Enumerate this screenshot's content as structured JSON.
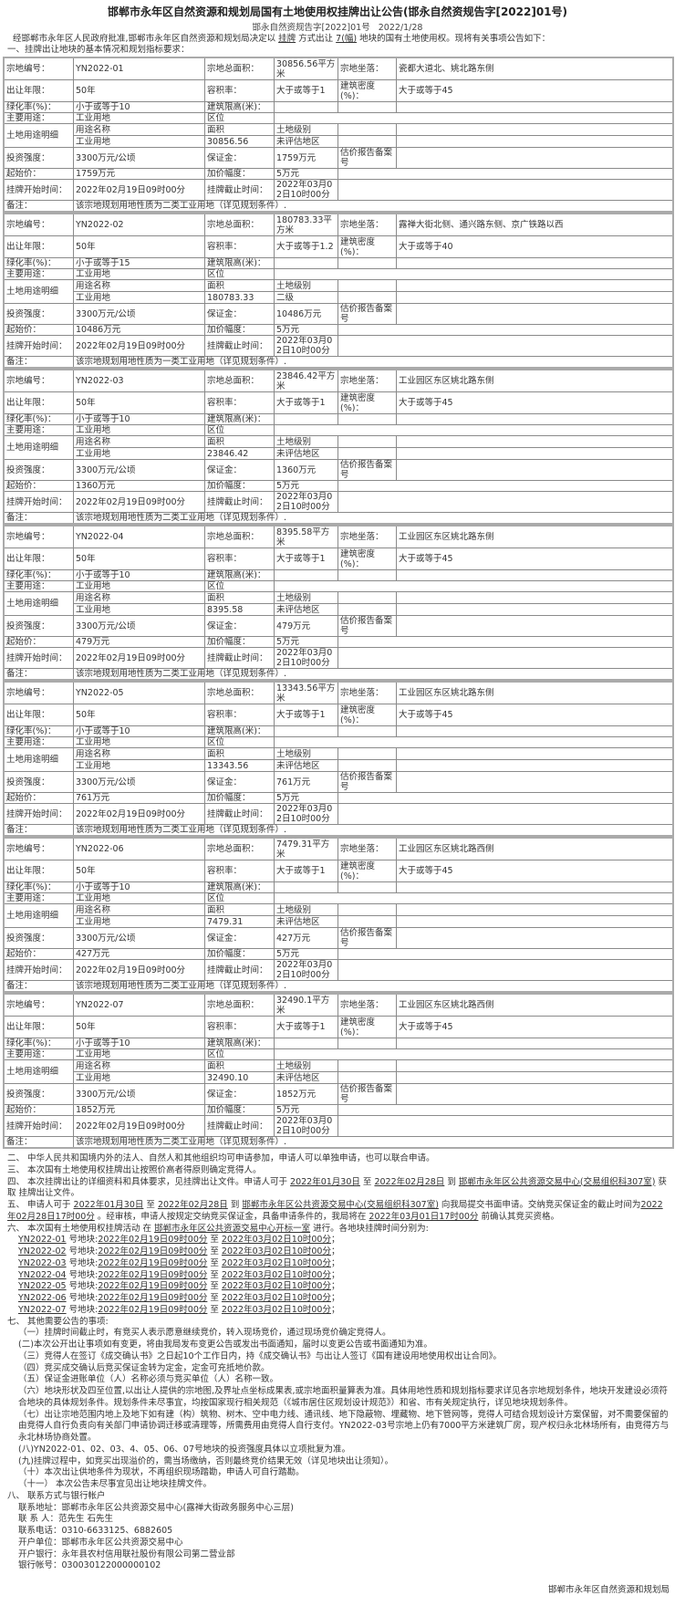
{
  "title": "邯郸市永年区自然资源和规划局国有土地使用权挂牌出让公告(邯永自然资规告字[2022]01号)",
  "doc_no": "邯永自然资规告字[2022]01号",
  "doc_date": "2022/1/28",
  "intro": {
    "a": "经邯郸市永年区人民政府批准,邯郸市永年区自然资源和规划局决定以 ",
    "method": "挂牌",
    "b": " 方式出让 ",
    "count": "7(幅)",
    "c": " 地块的国有土地使用权。现将有关事项公告如下："
  },
  "section1": "一、挂牌出让地块的基本情况和规划指标要求：",
  "labels": {
    "id": "宗地编号：",
    "area": "宗地总面积：",
    "loc": "宗地坐落：",
    "term": "出让年限：",
    "far": "容积率：",
    "density": "建筑密度(%)：",
    "green": "绿化率(%)：",
    "height": "建筑限高(米)：",
    "use": "主要用途：",
    "zone": "区位",
    "detail": "土地用途明细",
    "use_name": "用途名称",
    "area_col": "面积",
    "level": "土地级别",
    "invest": "投资强度：",
    "deposit": "保证金：",
    "appraisal": "估价报告备案号",
    "start_price": "起始价：",
    "increment": "加价幅度：",
    "start_time": "挂牌开始时间：",
    "end_time": "挂牌截止时间：",
    "note": "备注："
  },
  "parcels": [
    {
      "id": "YN2022-01",
      "area": "30856.56平方米",
      "loc": "瓷都大道北、姚北路东侧",
      "term": "50年",
      "far": "大于或等于1",
      "density": "大于或等于45",
      "green": "小于或等于10",
      "use": "工业用地",
      "use_name": "工业用地",
      "area_num": "30856.56",
      "level": "未评估地区",
      "invest": "3300万元/公顷",
      "deposit": "1759万元",
      "start_price": "1759万元",
      "increment": "5万元",
      "start_time": "2022年02月19日09时00分",
      "end_time": "2022年03月02日10时00分",
      "note": "该宗地规划用地性质为二类工业用地（详见规划条件）."
    },
    {
      "id": "YN2022-02",
      "area": "180783.33平方米",
      "loc": "露禅大街北侧、通兴路东侧、京广铁路以西",
      "term": "50年",
      "far": "大于或等于1.2",
      "density": "大于或等于40",
      "green": "小于或等于15",
      "use": "工业用地",
      "use_name": "工业用地",
      "area_num": "180783.33",
      "level": "二级",
      "invest": "3300万元/公顷",
      "deposit": "10486万元",
      "start_price": "10486万元",
      "increment": "5万元",
      "start_time": "2022年02月19日09时00分",
      "end_time": "2022年03月02日10时00分",
      "note": "该宗地规划用地性质为一类工业用地（详见规划条件）."
    },
    {
      "id": "YN2022-03",
      "area": "23846.42平方米",
      "loc": "工业园区东区姚北路东侧",
      "term": "50年",
      "far": "大于或等于1",
      "density": "大于或等于45",
      "green": "小于或等于10",
      "use": "工业用地",
      "use_name": "工业用地",
      "area_num": "23846.42",
      "level": "未评估地区",
      "invest": "3300万元/公顷",
      "deposit": "1360万元",
      "start_price": "1360万元",
      "increment": "5万元",
      "start_time": "2022年02月19日09时00分",
      "end_time": "2022年03月02日10时00分",
      "note": "该宗地规划用地性质为二类工业用地（详见规划条件）."
    },
    {
      "id": "YN2022-04",
      "area": "8395.58平方米",
      "loc": "工业园区东区姚北路东侧",
      "term": "50年",
      "far": "大于或等于1",
      "density": "大于或等于45",
      "green": "小于或等于10",
      "use": "工业用地",
      "use_name": "工业用地",
      "area_num": "8395.58",
      "level": "未评估地区",
      "invest": "3300万元/公顷",
      "deposit": "479万元",
      "start_price": "479万元",
      "increment": "5万元",
      "start_time": "2022年02月19日09时00分",
      "end_time": "2022年03月02日10时00分",
      "note": "该宗地规划用地性质为二类工业用地（详见规划条件）."
    },
    {
      "id": "YN2022-05",
      "area": "13343.56平方米",
      "loc": "工业园区东区姚北路东侧",
      "term": "50年",
      "far": "大于或等于1",
      "density": "大于或等于45",
      "green": "小于或等于10",
      "use": "工业用地",
      "use_name": "工业用地",
      "area_num": "13343.56",
      "level": "未评估地区",
      "invest": "3300万元/公顷",
      "deposit": "761万元",
      "start_price": "761万元",
      "increment": "5万元",
      "start_time": "2022年02月19日09时00分",
      "end_time": "2022年03月02日10时00分",
      "note": "该宗地规划用地性质为二类工业用地（详见规划条件）."
    },
    {
      "id": "YN2022-06",
      "area": "7479.31平方米",
      "loc": "工业园区东区姚北路西侧",
      "term": "50年",
      "far": "大于或等于1",
      "density": "大于或等于45",
      "green": "小于或等于10",
      "use": "工业用地",
      "use_name": "工业用地",
      "area_num": "7479.31",
      "level": "未评估地区",
      "invest": "3300万元/公顷",
      "deposit": "427万元",
      "start_price": "427万元",
      "increment": "5万元",
      "start_time": "2022年02月19日09时00分",
      "end_time": "2022年03月02日10时00分",
      "note": "该宗地规划用地性质为二类工业用地（详见规划条件）."
    },
    {
      "id": "YN2022-07",
      "area": "32490.1平方米",
      "loc": "工业园区东区姚北路西侧",
      "term": "50年",
      "far": "大于或等于1",
      "density": "大于或等于45",
      "green": "小于或等于10",
      "use": "工业用地",
      "use_name": "工业用地",
      "area_num": "32490.10",
      "level": "未评估地区",
      "invest": "3300万元/公顷",
      "deposit": "1852万元",
      "start_price": "1852万元",
      "increment": "5万元",
      "start_time": "2022年02月19日09时00分",
      "end_time": "2022年03月02日10时00分",
      "note": "该宗地规划用地性质为二类工业用地（详见规划条件）."
    }
  ],
  "notes": [
    {
      "indent": 0,
      "segs": [
        {
          "t": "二、 中华人民共和国境内外的法人、自然人和其他组织均可申请参加，申请人可以单独申请，也可以联合申请。"
        }
      ]
    },
    {
      "indent": 0,
      "segs": [
        {
          "t": "三、 本次国有土地使用权挂牌出让按照价高者得原则确定竞得人。"
        }
      ]
    },
    {
      "indent": 0,
      "segs": [
        {
          "t": "四、 本次挂牌出让的详细资料和具体要求，见挂牌出让文件。申请人可于 "
        },
        {
          "t": "2022年01月30日",
          "u": true
        },
        {
          "t": " 至 "
        },
        {
          "t": "2022年02月28日",
          "u": true
        },
        {
          "t": " 到 "
        },
        {
          "t": "邯郸市永年区公共资源交易中心(交易组织科307室)",
          "u": true
        },
        {
          "t": " 获取 挂牌出让文件。"
        }
      ]
    },
    {
      "indent": 0,
      "segs": [
        {
          "t": "五、 申请人可于 "
        },
        {
          "t": "2022年01月30日",
          "u": true
        },
        {
          "t": " 至 "
        },
        {
          "t": "2022年02月28日",
          "u": true
        },
        {
          "t": " 到 "
        },
        {
          "t": "邯郸市永年区公共资源交易中心(交易组织科307室)",
          "u": true
        },
        {
          "t": " 向我局提交书面申请。交纳竞买保证金的截止时间为"
        },
        {
          "t": "2022年02月28日17时00分",
          "u": true
        },
        {
          "t": " 。经审核，申请人按规定交纳竞买保证金，具备申请条件的，我局将在 "
        },
        {
          "t": "2022年03月01日17时00分",
          "u": true
        },
        {
          "t": " 前确认其竞买资格。"
        }
      ]
    },
    {
      "indent": 0,
      "segs": [
        {
          "t": "六、 本次国有土地使用权挂牌活动 在 "
        },
        {
          "t": "邯郸市永年区公共资源交易中心开标一室",
          "u": true
        },
        {
          "t": " 进行。各地块挂牌时间分别为:"
        }
      ]
    },
    {
      "indent": 1,
      "segs": [
        {
          "t": "YN2022-01",
          "u": true
        },
        {
          "t": " 号地块:"
        },
        {
          "t": "2022年02月19日09时00分",
          "u": true
        },
        {
          "t": " 至 "
        },
        {
          "t": "2022年03月02日10时00分",
          "u": true
        },
        {
          "t": "；"
        }
      ]
    },
    {
      "indent": 1,
      "segs": [
        {
          "t": "YN2022-02",
          "u": true
        },
        {
          "t": " 号地块:"
        },
        {
          "t": "2022年02月19日09时00分",
          "u": true
        },
        {
          "t": " 至 "
        },
        {
          "t": "2022年03月02日10时00分",
          "u": true
        },
        {
          "t": "；"
        }
      ]
    },
    {
      "indent": 1,
      "segs": [
        {
          "t": "YN2022-03",
          "u": true
        },
        {
          "t": " 号地块:"
        },
        {
          "t": "2022年02月19日09时00分",
          "u": true
        },
        {
          "t": " 至 "
        },
        {
          "t": "2022年03月02日10时00分",
          "u": true
        },
        {
          "t": "；"
        }
      ]
    },
    {
      "indent": 1,
      "segs": [
        {
          "t": "YN2022-04",
          "u": true
        },
        {
          "t": " 号地块:"
        },
        {
          "t": "2022年02月19日09时00分",
          "u": true
        },
        {
          "t": " 至 "
        },
        {
          "t": "2022年03月02日10时00分",
          "u": true
        },
        {
          "t": "；"
        }
      ]
    },
    {
      "indent": 1,
      "segs": [
        {
          "t": "YN2022-05",
          "u": true
        },
        {
          "t": " 号地块:"
        },
        {
          "t": "2022年02月19日09时00分",
          "u": true
        },
        {
          "t": " 至 "
        },
        {
          "t": "2022年03月02日10时00分",
          "u": true
        },
        {
          "t": "；"
        }
      ]
    },
    {
      "indent": 1,
      "segs": [
        {
          "t": "YN2022-06",
          "u": true
        },
        {
          "t": " 号地块:"
        },
        {
          "t": "2022年02月19日09时00分",
          "u": true
        },
        {
          "t": " 至 "
        },
        {
          "t": "2022年03月02日10时00分",
          "u": true
        },
        {
          "t": "；"
        }
      ]
    },
    {
      "indent": 1,
      "segs": [
        {
          "t": "YN2022-07",
          "u": true
        },
        {
          "t": " 号地块:"
        },
        {
          "t": "2022年02月19日09时00分",
          "u": true
        },
        {
          "t": " 至 "
        },
        {
          "t": "2022年03月02日10时00分",
          "u": true
        },
        {
          "t": "；"
        }
      ]
    },
    {
      "indent": 0,
      "segs": [
        {
          "t": "七、 其他需要公告的事项:"
        }
      ]
    },
    {
      "indent": 1,
      "segs": [
        {
          "t": "（一）挂牌时间截止时，有竞买人表示愿意继续竞价，转入现场竞价，通过现场竞价确定竞得人。"
        }
      ]
    },
    {
      "indent": 1,
      "segs": [
        {
          "t": "(二)本次公开出让事项如有变更，将由我局发布变更公告或发出书面通知，届时以变更公告或书面通知为准。"
        }
      ]
    },
    {
      "indent": 1,
      "segs": [
        {
          "t": "（三）竞得人在签订《成交确认书》之日起10个工作日内，持《成交确认书》与出让人签订《国有建设用地使用权出让合同》。"
        }
      ]
    },
    {
      "indent": 1,
      "segs": [
        {
          "t": "（四）竞买成交确认后竞买保证金转为定金，定金可充抵地价款。"
        }
      ]
    },
    {
      "indent": 1,
      "segs": [
        {
          "t": "（五）保证金进账单位（人）名称必须与竞买单位（人）名称一致。"
        }
      ]
    },
    {
      "indent": 1,
      "segs": [
        {
          "t": "（六）地块形状及四至位置,以出让人提供的宗地图,及界址点坐标成果表,或宗地面积量算表为准。具体用地性质和规划指标要求详见各宗地规划条件，地块开发建设必须符合地块的具体规划条件。规划条件未尽事宜，均按国家现行相关规范（《城市居住区规划设计规范》）和省、市有关规定执行，详见地块规划条件。"
        }
      ]
    },
    {
      "indent": 1,
      "segs": [
        {
          "t": "（七）出让宗地范围内地上及地下如有建（构）筑物、树木、空中电力线、通讯线、地下隐蔽物、埋藏物、地下管网等，竞得人可结合规划设计方案保留，对不需要保留的由竞得人自行负责向有关部门申请协调迁移或清理等，所需费用由竞得人自行支付。YN2022-03号宗地上仍有7000平方米建筑厂房，现产权归永北林场所有，由竞得方与永北林场协商处置。"
        }
      ]
    },
    {
      "indent": 1,
      "segs": [
        {
          "t": "(八)YN2022-01、02、03、4、05、06、07号地块的投资强度具体以立项批复为准。"
        }
      ]
    },
    {
      "indent": 1,
      "segs": [
        {
          "t": "(九)挂牌过程中，如竞买出现溢价的，需当场缴纳，否则最终竞价结果无效（详见地块出让须知）。"
        }
      ]
    },
    {
      "indent": 1,
      "segs": [
        {
          "t": "（十）本次出让供地条件为现状，不再组织现场踏勘，申请人可自行踏勘。"
        }
      ]
    },
    {
      "indent": 1,
      "segs": [
        {
          "t": "（十一） 本次公告未尽事宜见出让地块挂牌文件。"
        }
      ]
    },
    {
      "indent": 0,
      "segs": [
        {
          "t": "八、 联系方式与银行帐户"
        }
      ]
    },
    {
      "indent": 1,
      "segs": [
        {
          "t": "联系地址：邯郸市永年区公共资源交易中心(露禅大街政务服务中心三层)"
        }
      ]
    },
    {
      "indent": 1,
      "segs": [
        {
          "t": "联 系 人：范先生 石先生"
        }
      ]
    },
    {
      "indent": 1,
      "segs": [
        {
          "t": "联系电话：0310-6633125、6882605"
        }
      ]
    },
    {
      "indent": 1,
      "segs": [
        {
          "t": "开户单位：邯郸市永年区公共资源交易中心"
        }
      ]
    },
    {
      "indent": 1,
      "segs": [
        {
          "t": "开户银行：永年县农村信用联社股份有限公司第二营业部"
        }
      ]
    },
    {
      "indent": 1,
      "segs": [
        {
          "t": "银行帐号：030030122000000102"
        }
      ]
    }
  ],
  "signature": "邯郸市永年区自然资源和规划局"
}
